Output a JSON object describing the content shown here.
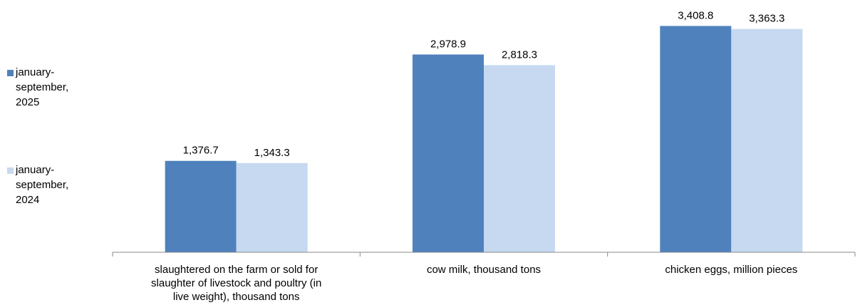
{
  "chart_data": {
    "type": "bar",
    "categories": [
      "slaughtered on the farm or sold for slaughter of livestock and poultry (in live weight), thousand tons",
      "cow milk, thousand tons",
      "chicken eggs, million pieces"
    ],
    "series": [
      {
        "name": "january-september, 2025",
        "values": [
          1376.7,
          2978.9,
          3408.8
        ],
        "labels": [
          "1,376.7",
          "2,978.9",
          "3,408.8"
        ],
        "color": "#4f81bd"
      },
      {
        "name": "january-september, 2024",
        "values": [
          1343.3,
          2818.3,
          3363.3
        ],
        "labels": [
          "1,343.3",
          "2,818.3",
          "3,363.3"
        ],
        "color": "#c6d9f1"
      }
    ],
    "ylim": [
      0,
      3800
    ],
    "grid": false,
    "legend_position": "left",
    "axis_color": "#888888"
  }
}
